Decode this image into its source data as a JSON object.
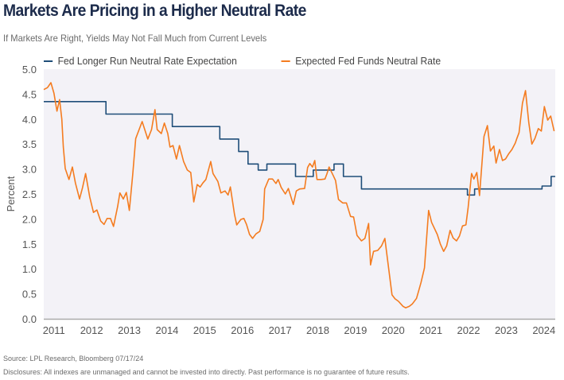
{
  "chart_data": {
    "type": "line",
    "title": "Markets Are Pricing in a Higher Neutral Rate",
    "subtitle": "If Markets Are Right, Yields May Not Fall Much from Current Levels",
    "ylabel": "Percent",
    "xlabel": "",
    "ylim": [
      0,
      5
    ],
    "xlim": [
      2010.73,
      2024.3
    ],
    "yticks": [
      "0.0",
      "0.5",
      "1.0",
      "1.5",
      "2.0",
      "2.5",
      "3.0",
      "3.5",
      "4.0",
      "4.5",
      "5.0"
    ],
    "xticks": [
      "2011",
      "2012",
      "2013",
      "2014",
      "2015",
      "2016",
      "2017",
      "2018",
      "2019",
      "2020",
      "2021",
      "2022",
      "2023",
      "2024"
    ],
    "grid": false,
    "legend_position": "top-left",
    "series": [
      {
        "name": "Fed Longer Run Neutral Rate Expectation",
        "color": "#1f4e79",
        "step": true,
        "points": [
          [
            2010.73,
            4.35
          ],
          [
            2012.38,
            4.35
          ],
          [
            2012.38,
            4.1
          ],
          [
            2014.14,
            4.1
          ],
          [
            2014.14,
            3.85
          ],
          [
            2015.4,
            3.85
          ],
          [
            2015.4,
            3.6
          ],
          [
            2015.9,
            3.6
          ],
          [
            2015.9,
            3.35
          ],
          [
            2016.15,
            3.35
          ],
          [
            2016.15,
            3.1
          ],
          [
            2016.42,
            3.1
          ],
          [
            2016.42,
            2.98
          ],
          [
            2016.65,
            2.98
          ],
          [
            2016.65,
            3.1
          ],
          [
            2017.41,
            3.1
          ],
          [
            2017.41,
            2.85
          ],
          [
            2017.88,
            2.85
          ],
          [
            2017.88,
            2.98
          ],
          [
            2018.43,
            2.98
          ],
          [
            2018.43,
            3.1
          ],
          [
            2018.68,
            3.1
          ],
          [
            2018.68,
            2.85
          ],
          [
            2019.16,
            2.85
          ],
          [
            2019.16,
            2.6
          ],
          [
            2021.97,
            2.6
          ],
          [
            2021.97,
            2.48
          ],
          [
            2022.16,
            2.48
          ],
          [
            2022.16,
            2.6
          ],
          [
            2023.95,
            2.6
          ],
          [
            2023.95,
            2.66
          ],
          [
            2024.19,
            2.66
          ],
          [
            2024.19,
            2.85
          ],
          [
            2024.3,
            2.85
          ]
        ]
      },
      {
        "name": "Expected Fed Funds Neutral Rate",
        "color": "#f47c20",
        "points": [
          [
            2010.73,
            4.59
          ],
          [
            2010.83,
            4.63
          ],
          [
            2010.92,
            4.73
          ],
          [
            2011.0,
            4.52
          ],
          [
            2011.08,
            4.16
          ],
          [
            2011.15,
            4.39
          ],
          [
            2011.21,
            4.0
          ],
          [
            2011.25,
            3.44
          ],
          [
            2011.3,
            3.01
          ],
          [
            2011.4,
            2.79
          ],
          [
            2011.49,
            3.04
          ],
          [
            2011.57,
            2.72
          ],
          [
            2011.68,
            2.4
          ],
          [
            2011.76,
            2.63
          ],
          [
            2011.84,
            2.91
          ],
          [
            2011.95,
            2.44
          ],
          [
            2012.05,
            2.13
          ],
          [
            2012.14,
            2.18
          ],
          [
            2012.24,
            1.96
          ],
          [
            2012.33,
            1.89
          ],
          [
            2012.41,
            2.01
          ],
          [
            2012.5,
            2.01
          ],
          [
            2012.58,
            1.85
          ],
          [
            2012.69,
            2.25
          ],
          [
            2012.75,
            2.52
          ],
          [
            2012.84,
            2.4
          ],
          [
            2012.92,
            2.53
          ],
          [
            2013.0,
            2.17
          ],
          [
            2013.09,
            2.88
          ],
          [
            2013.17,
            3.61
          ],
          [
            2013.34,
            3.95
          ],
          [
            2013.49,
            3.6
          ],
          [
            2013.59,
            3.79
          ],
          [
            2013.68,
            4.19
          ],
          [
            2013.74,
            3.79
          ],
          [
            2013.85,
            3.71
          ],
          [
            2013.93,
            3.92
          ],
          [
            2014.02,
            3.71
          ],
          [
            2014.08,
            3.44
          ],
          [
            2014.16,
            3.47
          ],
          [
            2014.25,
            3.2
          ],
          [
            2014.33,
            3.47
          ],
          [
            2014.44,
            3.15
          ],
          [
            2014.54,
            2.98
          ],
          [
            2014.63,
            2.93
          ],
          [
            2014.71,
            2.34
          ],
          [
            2014.8,
            2.69
          ],
          [
            2014.88,
            2.64
          ],
          [
            2014.95,
            2.72
          ],
          [
            2015.03,
            2.79
          ],
          [
            2015.16,
            3.15
          ],
          [
            2015.22,
            2.91
          ],
          [
            2015.35,
            2.75
          ],
          [
            2015.43,
            2.52
          ],
          [
            2015.54,
            2.56
          ],
          [
            2015.62,
            2.48
          ],
          [
            2015.68,
            2.64
          ],
          [
            2015.79,
            2.09
          ],
          [
            2015.85,
            1.88
          ],
          [
            2015.96,
            1.99
          ],
          [
            2016.04,
            2.01
          ],
          [
            2016.11,
            1.89
          ],
          [
            2016.19,
            1.69
          ],
          [
            2016.27,
            1.61
          ],
          [
            2016.36,
            1.7
          ],
          [
            2016.46,
            1.75
          ],
          [
            2016.55,
            1.99
          ],
          [
            2016.59,
            2.6
          ],
          [
            2016.7,
            2.8
          ],
          [
            2016.8,
            2.8
          ],
          [
            2016.89,
            2.71
          ],
          [
            2016.95,
            2.79
          ],
          [
            2017.03,
            2.63
          ],
          [
            2017.14,
            2.5
          ],
          [
            2017.22,
            2.61
          ],
          [
            2017.35,
            2.29
          ],
          [
            2017.43,
            2.56
          ],
          [
            2017.52,
            2.6
          ],
          [
            2017.65,
            2.61
          ],
          [
            2017.73,
            3.03
          ],
          [
            2017.79,
            3.11
          ],
          [
            2017.86,
            3.04
          ],
          [
            2017.92,
            3.17
          ],
          [
            2017.98,
            2.79
          ],
          [
            2018.09,
            2.79
          ],
          [
            2018.19,
            2.8
          ],
          [
            2018.24,
            2.9
          ],
          [
            2018.3,
            3.04
          ],
          [
            2018.41,
            2.87
          ],
          [
            2018.47,
            2.77
          ],
          [
            2018.55,
            2.39
          ],
          [
            2018.66,
            2.32
          ],
          [
            2018.76,
            2.32
          ],
          [
            2018.87,
            2.05
          ],
          [
            2018.95,
            2.04
          ],
          [
            2019.04,
            1.67
          ],
          [
            2019.16,
            1.56
          ],
          [
            2019.25,
            1.61
          ],
          [
            2019.35,
            1.91
          ],
          [
            2019.4,
            1.08
          ],
          [
            2019.48,
            1.35
          ],
          [
            2019.59,
            1.37
          ],
          [
            2019.69,
            1.46
          ],
          [
            2019.78,
            1.61
          ],
          [
            2019.86,
            1.13
          ],
          [
            2019.97,
            0.48
          ],
          [
            2020.05,
            0.4
          ],
          [
            2020.14,
            0.35
          ],
          [
            2020.26,
            0.25
          ],
          [
            2020.33,
            0.22
          ],
          [
            2020.43,
            0.25
          ],
          [
            2020.51,
            0.3
          ],
          [
            2020.62,
            0.41
          ],
          [
            2020.68,
            0.57
          ],
          [
            2020.74,
            0.73
          ],
          [
            2020.83,
            1.02
          ],
          [
            2020.94,
            2.17
          ],
          [
            2021.02,
            1.93
          ],
          [
            2021.17,
            1.69
          ],
          [
            2021.25,
            1.5
          ],
          [
            2021.34,
            1.35
          ],
          [
            2021.42,
            1.46
          ],
          [
            2021.51,
            1.77
          ],
          [
            2021.59,
            1.62
          ],
          [
            2021.68,
            1.56
          ],
          [
            2021.76,
            1.66
          ],
          [
            2021.84,
            1.86
          ],
          [
            2021.93,
            1.88
          ],
          [
            2021.99,
            2.23
          ],
          [
            2022.08,
            2.91
          ],
          [
            2022.14,
            2.8
          ],
          [
            2022.22,
            2.93
          ],
          [
            2022.29,
            2.47
          ],
          [
            2022.41,
            3.65
          ],
          [
            2022.5,
            3.87
          ],
          [
            2022.58,
            3.36
          ],
          [
            2022.67,
            3.46
          ],
          [
            2022.73,
            3.12
          ],
          [
            2022.82,
            3.39
          ],
          [
            2022.9,
            3.17
          ],
          [
            2022.98,
            3.2
          ],
          [
            2023.07,
            3.31
          ],
          [
            2023.15,
            3.39
          ],
          [
            2023.24,
            3.52
          ],
          [
            2023.28,
            3.61
          ],
          [
            2023.34,
            3.73
          ],
          [
            2023.43,
            4.32
          ],
          [
            2023.51,
            4.57
          ],
          [
            2023.6,
            3.92
          ],
          [
            2023.68,
            3.5
          ],
          [
            2023.76,
            3.61
          ],
          [
            2023.85,
            3.81
          ],
          [
            2023.93,
            3.76
          ],
          [
            2024.01,
            4.25
          ],
          [
            2024.1,
            3.98
          ],
          [
            2024.18,
            4.06
          ],
          [
            2024.27,
            3.76
          ]
        ]
      }
    ]
  },
  "footer": {
    "source": "Source: LPL Research, Bloomberg 07/17/24",
    "disclosure": "Disclosures: All indexes are unmanaged and cannot be invested into directly. Past performance is no guarantee of future results."
  }
}
